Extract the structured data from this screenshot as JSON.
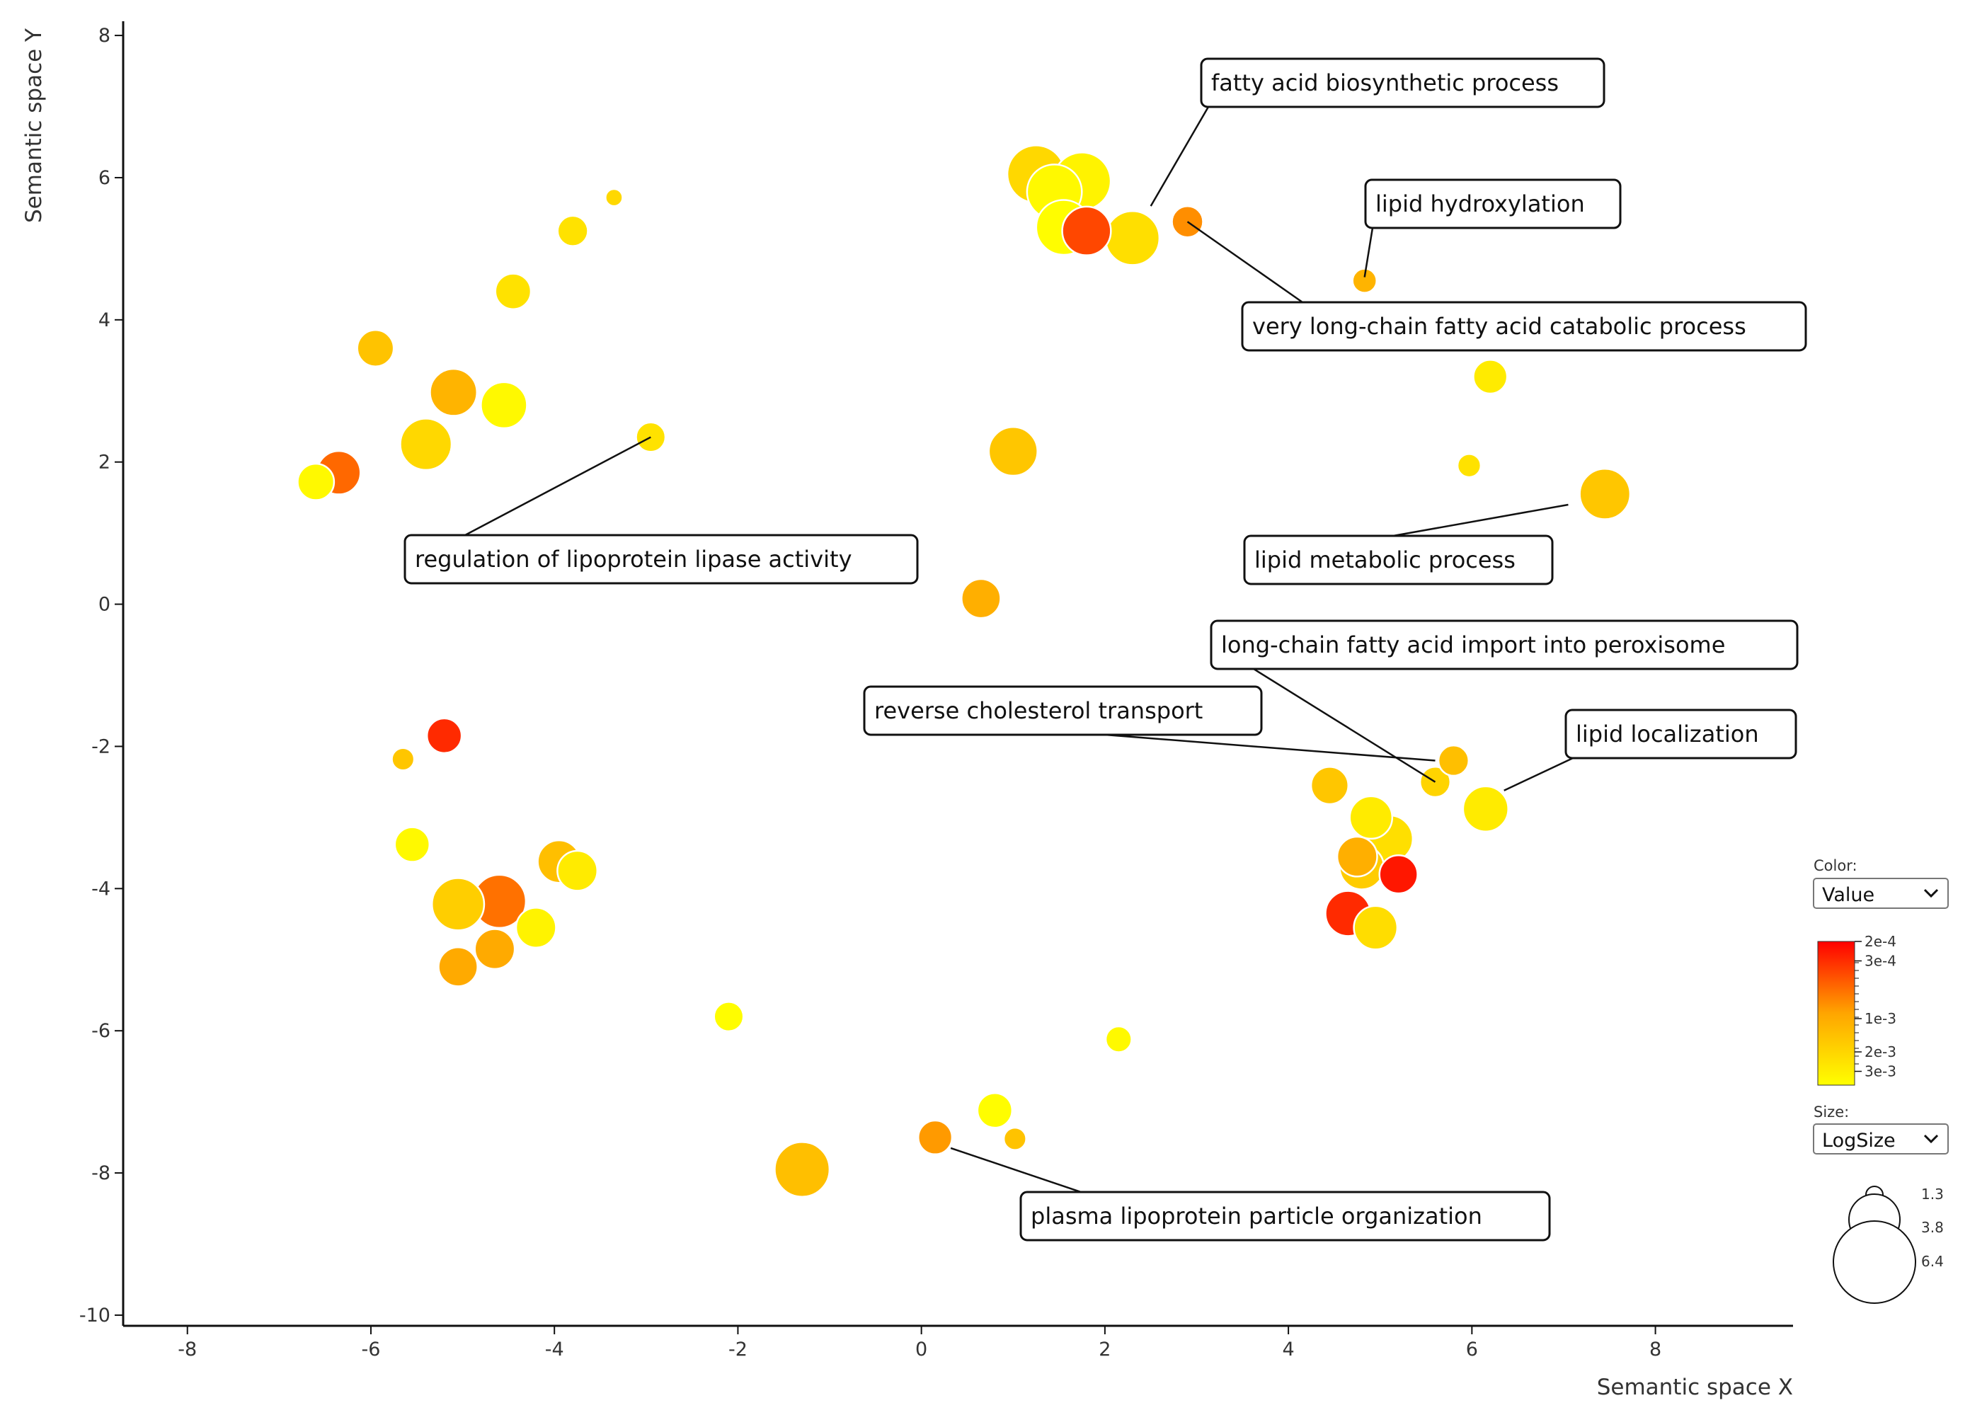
{
  "chart_data": {
    "type": "scatter",
    "subtype": "bubble",
    "xlabel": "Semantic space X",
    "ylabel": "Semantic space Y",
    "xlim": [
      -8.7,
      9.5
    ],
    "ylim": [
      -10.15,
      8.2
    ],
    "x_ticks": [
      -8,
      -6,
      -4,
      -2,
      0,
      2,
      4,
      6,
      8
    ],
    "x_tick_labels": [
      "-8",
      "-6",
      "-4",
      "-2",
      "0",
      "2",
      "4",
      "6",
      "8"
    ],
    "y_ticks": [
      8,
      6,
      4,
      2,
      0,
      -2,
      -4,
      -6,
      -8,
      -10
    ],
    "y_tick_labels": [
      "8",
      "6",
      "4",
      "2",
      "0",
      "-2",
      "-4",
      "-6",
      "-8",
      "-10"
    ],
    "grid": false,
    "points": [
      {
        "x": 1.25,
        "y": 6.05,
        "size": 5.9,
        "value": 0.0025
      },
      {
        "x": 1.75,
        "y": 5.95,
        "size": 5.9,
        "value": 0.004
      },
      {
        "x": 1.45,
        "y": 5.8,
        "size": 5.6,
        "value": 0.0045
      },
      {
        "x": 2.3,
        "y": 5.15,
        "size": 5.5,
        "value": 0.0028
      },
      {
        "x": 1.55,
        "y": 5.3,
        "size": 5.6,
        "value": 0.0048
      },
      {
        "x": 1.8,
        "y": 5.25,
        "size": 4.9,
        "value": 0.0004
      },
      {
        "x": 2.9,
        "y": 5.38,
        "size": 2.9,
        "value": 0.0008
      },
      {
        "x": 4.83,
        "y": 4.55,
        "size": 2.1,
        "value": 0.0013
      },
      {
        "x": 6.2,
        "y": 3.2,
        "size": 3.2,
        "value": 0.0035
      },
      {
        "x": 5.97,
        "y": 1.95,
        "size": 2.0,
        "value": 0.003
      },
      {
        "x": 7.45,
        "y": 1.55,
        "size": 5.1,
        "value": 0.0018
      },
      {
        "x": 1.0,
        "y": 2.15,
        "size": 4.9,
        "value": 0.0018
      },
      {
        "x": 0.65,
        "y": 0.08,
        "size": 3.8,
        "value": 0.0012
      },
      {
        "x": -3.35,
        "y": 5.72,
        "size": 1.3,
        "value": 0.0025
      },
      {
        "x": -3.8,
        "y": 5.25,
        "size": 2.8,
        "value": 0.003
      },
      {
        "x": -4.45,
        "y": 4.4,
        "size": 3.4,
        "value": 0.003
      },
      {
        "x": -5.95,
        "y": 3.6,
        "size": 3.5,
        "value": 0.0017
      },
      {
        "x": -4.55,
        "y": 2.8,
        "size": 4.6,
        "value": 0.0045
      },
      {
        "x": -5.1,
        "y": 2.98,
        "size": 4.7,
        "value": 0.0013
      },
      {
        "x": -2.95,
        "y": 2.35,
        "size": 2.7,
        "value": 0.003
      },
      {
        "x": -6.6,
        "y": 1.72,
        "size": 3.5,
        "value": 0.0045
      },
      {
        "x": -6.35,
        "y": 1.85,
        "size": 4.3,
        "value": 0.00055
      },
      {
        "x": -5.4,
        "y": 2.25,
        "size": 5.2,
        "value": 0.0025
      },
      {
        "x": -5.2,
        "y": -1.85,
        "size": 3.3,
        "value": 0.0003
      },
      {
        "x": -5.65,
        "y": -2.18,
        "size": 1.9,
        "value": 0.0018
      },
      {
        "x": -5.55,
        "y": -3.38,
        "size": 3.3,
        "value": 0.0045
      },
      {
        "x": -3.75,
        "y": -3.75,
        "size": 3.9,
        "value": 0.0035
      },
      {
        "x": -3.95,
        "y": -3.62,
        "size": 4.2,
        "value": 0.0016
      },
      {
        "x": -4.2,
        "y": -4.55,
        "size": 3.9,
        "value": 0.004
      },
      {
        "x": -5.05,
        "y": -4.22,
        "size": 5.3,
        "value": 0.0021
      },
      {
        "x": -4.65,
        "y": -4.85,
        "size": 3.9,
        "value": 0.0011
      },
      {
        "x": -5.05,
        "y": -5.1,
        "size": 3.8,
        "value": 0.0011
      },
      {
        "x": -4.6,
        "y": -4.18,
        "size": 5.4,
        "value": 0.0006
      },
      {
        "x": -2.1,
        "y": -5.8,
        "size": 2.7,
        "value": 0.0048
      },
      {
        "x": 2.15,
        "y": -6.12,
        "size": 2.3,
        "value": 0.0045
      },
      {
        "x": 0.8,
        "y": -7.12,
        "size": 3.3,
        "value": 0.0048
      },
      {
        "x": 1.02,
        "y": -7.52,
        "size": 1.9,
        "value": 0.0017
      },
      {
        "x": 0.15,
        "y": -7.5,
        "size": 3.2,
        "value": 0.0009
      },
      {
        "x": -1.3,
        "y": -7.95,
        "size": 5.6,
        "value": 0.0016
      },
      {
        "x": 4.75,
        "y": -3.55,
        "size": 3.9,
        "value": 0.0012
      },
      {
        "x": 4.65,
        "y": -4.35,
        "size": 4.5,
        "value": 0.0003
      },
      {
        "x": 5.2,
        "y": -3.8,
        "size": 3.7,
        "value": 0.00025
      },
      {
        "x": 4.9,
        "y": -3.0,
        "size": 4.2,
        "value": 0.0035
      },
      {
        "x": 5.1,
        "y": -3.3,
        "size": 4.7,
        "value": 0.0028
      },
      {
        "x": 4.45,
        "y": -2.55,
        "size": 3.6,
        "value": 0.0018
      },
      {
        "x": 4.8,
        "y": -3.7,
        "size": 4.4,
        "value": 0.002
      },
      {
        "x": 4.95,
        "y": -4.55,
        "size": 4.3,
        "value": 0.0027
      },
      {
        "x": 5.6,
        "y": -2.5,
        "size": 2.8,
        "value": 0.0023
      },
      {
        "x": 5.8,
        "y": -2.2,
        "size": 2.8,
        "value": 0.0016
      },
      {
        "x": 6.15,
        "y": -2.88,
        "size": 4.5,
        "value": 0.0035
      }
    ],
    "annotations": [
      {
        "text": "fatty acid biosynthetic process",
        "x": 2.5,
        "y": 5.6
      },
      {
        "text": "lipid hydroxylation",
        "x": 4.83,
        "y": 4.6
      },
      {
        "text": "very long-chain fatty acid catabolic process",
        "x": 2.9,
        "y": 5.38
      },
      {
        "text": "regulation of lipoprotein lipase activity",
        "x": -2.95,
        "y": 2.35
      },
      {
        "text": "lipid metabolic process",
        "x": 7.05,
        "y": 1.4
      },
      {
        "text": "long-chain fatty acid import into peroxisome",
        "x": 5.6,
        "y": -2.5
      },
      {
        "text": "reverse cholesterol transport",
        "x": 5.6,
        "y": -2.2
      },
      {
        "text": "lipid localization",
        "x": 6.35,
        "y": -2.62
      },
      {
        "text": "plasma lipoprotein particle organization",
        "x": 0.32,
        "y": -7.65
      }
    ],
    "color_legend": {
      "title": "Color:",
      "selected": "Value",
      "ticks": [
        "2e-4",
        "3e-4",
        "1e-3",
        "2e-3",
        "3e-3"
      ],
      "tick_values": [
        0.0002,
        0.0003,
        0.001,
        0.002,
        0.003
      ],
      "color_max": "#ff0000",
      "color_mid": "#ffa500",
      "color_min": "#ffff00"
    },
    "size_legend": {
      "title": "Size:",
      "selected": "LogSize",
      "values": [
        "1.3",
        "3.8",
        "6.4"
      ]
    }
  }
}
